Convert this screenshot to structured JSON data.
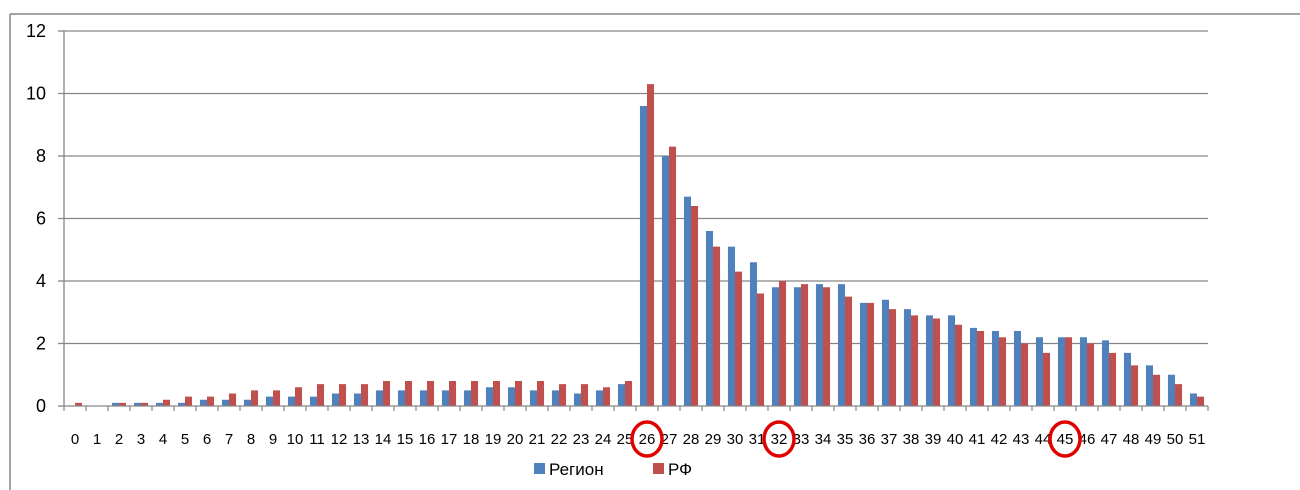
{
  "chart_data": {
    "type": "bar",
    "categories": [
      "0",
      "1",
      "2",
      "3",
      "4",
      "5",
      "6",
      "7",
      "8",
      "9",
      "10",
      "11",
      "12",
      "13",
      "14",
      "15",
      "16",
      "17",
      "18",
      "19",
      "20",
      "21",
      "22",
      "23",
      "24",
      "25",
      "26",
      "27",
      "28",
      "29",
      "30",
      "31",
      "32",
      "33",
      "34",
      "35",
      "36",
      "37",
      "38",
      "39",
      "40",
      "41",
      "42",
      "43",
      "44",
      "45",
      "46",
      "47",
      "48",
      "49",
      "50",
      "51"
    ],
    "series": [
      {
        "name": "Регион",
        "color": "#4F81BD",
        "values": [
          0,
          0,
          0.1,
          0.1,
          0.1,
          0.1,
          0.2,
          0.2,
          0.2,
          0.3,
          0.3,
          0.3,
          0.4,
          0.4,
          0.5,
          0.5,
          0.5,
          0.5,
          0.5,
          0.6,
          0.6,
          0.5,
          0.5,
          0.4,
          0.5,
          0.7,
          9.6,
          8.0,
          6.7,
          5.6,
          5.1,
          4.6,
          3.8,
          3.8,
          3.9,
          3.9,
          3.3,
          3.4,
          3.1,
          2.9,
          2.9,
          2.5,
          2.4,
          2.4,
          2.2,
          2.2,
          2.2,
          2.1,
          1.7,
          1.3,
          1.0,
          0.4
        ]
      },
      {
        "name": "РФ",
        "color": "#C0504D",
        "values": [
          0.1,
          0,
          0.1,
          0.1,
          0.2,
          0.3,
          0.3,
          0.4,
          0.5,
          0.5,
          0.6,
          0.7,
          0.7,
          0.7,
          0.8,
          0.8,
          0.8,
          0.8,
          0.8,
          0.8,
          0.8,
          0.8,
          0.7,
          0.7,
          0.6,
          0.8,
          10.3,
          8.3,
          6.4,
          5.1,
          4.3,
          3.6,
          4.0,
          3.9,
          3.8,
          3.5,
          3.3,
          3.1,
          2.9,
          2.8,
          2.6,
          2.4,
          2.2,
          2.0,
          1.7,
          2.2,
          2.0,
          1.7,
          1.3,
          1.0,
          0.7,
          0.3
        ]
      }
    ],
    "ylim": [
      0,
      12
    ],
    "yticks": [
      "0",
      "2",
      "4",
      "6",
      "8",
      "10",
      "12"
    ],
    "grid": true,
    "legend_position": "bottom",
    "highlighted_categories": [
      "26",
      "32",
      "45"
    ],
    "highlight_color": "#E00000"
  }
}
